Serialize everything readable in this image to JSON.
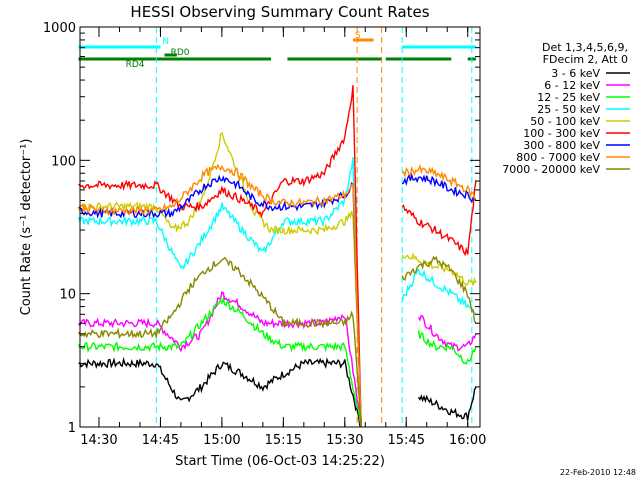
{
  "chart_data": {
    "type": "line",
    "title": "HESSI Observing Summary Count Rates",
    "xlabel": "Start Time (06-Oct-03 14:25:22)",
    "ylabel": "Count Rate (s⁻¹ detector⁻¹)",
    "x_range": [
      "14:25:22",
      "16:03"
    ],
    "ylim": [
      1,
      1000
    ],
    "yscale": "log",
    "x_ticks": [
      "14:30",
      "14:45",
      "15:00",
      "15:15",
      "15:30",
      "15:45",
      "16:00"
    ],
    "y_ticks": [
      "1",
      "10",
      "100",
      "1000"
    ],
    "grid": false,
    "legend": {
      "position": "right",
      "header": [
        "Det 1,3,4,5,6,9,",
        "FDecim 2, Att 0"
      ]
    },
    "series": [
      {
        "name": "3 - 6 keV",
        "color": "#000000",
        "x": [
          "14:25",
          "14:30",
          "14:40",
          "14:44",
          "14:50",
          "14:55",
          "15:00",
          "15:05",
          "15:10",
          "15:15",
          "15:20",
          "15:25",
          "15:30",
          "15:34",
          "15:40",
          "15:44",
          "15:48",
          "15:52",
          "15:56",
          "16:00",
          "16:02"
        ],
        "values": [
          3,
          3,
          3,
          3,
          1.5,
          2,
          3,
          2.5,
          2,
          2.5,
          3,
          3,
          3,
          1,
          null,
          null,
          1.7,
          1.5,
          1.3,
          1.2,
          2
        ]
      },
      {
        "name": "6 - 12 keV",
        "color": "#ff00ff",
        "x": [
          "14:25",
          "14:30",
          "14:40",
          "14:44",
          "14:50",
          "14:55",
          "15:00",
          "15:05",
          "15:10",
          "15:15",
          "15:20",
          "15:25",
          "15:30",
          "15:34",
          "15:40",
          "15:44",
          "15:48",
          "15:52",
          "15:56",
          "16:00",
          "16:02"
        ],
        "values": [
          6,
          6,
          6,
          6,
          4,
          5,
          10,
          8,
          6,
          6,
          6,
          6,
          7,
          1,
          null,
          null,
          7,
          5,
          4,
          4,
          5
        ]
      },
      {
        "name": "12 - 25 keV",
        "color": "#00ff00",
        "x": [
          "14:25",
          "14:30",
          "14:40",
          "14:44",
          "14:50",
          "14:55",
          "15:00",
          "15:05",
          "15:10",
          "15:15",
          "15:20",
          "15:25",
          "15:30",
          "15:34",
          "15:40",
          "15:44",
          "15:48",
          "15:52",
          "15:56",
          "16:00",
          "16:02"
        ],
        "values": [
          4,
          4,
          4,
          4,
          4,
          6,
          9,
          7,
          5,
          4,
          4,
          4,
          4,
          1,
          null,
          null,
          5,
          4,
          4,
          3,
          4
        ]
      },
      {
        "name": "25 - 50 keV",
        "color": "#00ffff",
        "x": [
          "14:25",
          "14:30",
          "14:40",
          "14:44",
          "14:50",
          "14:55",
          "15:00",
          "15:05",
          "15:10",
          "15:15",
          "15:20",
          "15:25",
          "15:30",
          "15:32",
          "15:34",
          "15:40",
          "15:44",
          "15:48",
          "15:52",
          "15:56",
          "16:00",
          "16:02"
        ],
        "values": [
          35,
          35,
          35,
          35,
          15,
          25,
          45,
          30,
          20,
          35,
          35,
          35,
          50,
          100,
          1,
          null,
          9,
          15,
          12,
          10,
          8,
          7
        ]
      },
      {
        "name": "50 - 100 keV",
        "color": "#cccc00",
        "x": [
          "14:25",
          "14:30",
          "14:40",
          "14:44",
          "14:48",
          "14:52",
          "14:56",
          "15:00",
          "15:04",
          "15:08",
          "15:12",
          "15:15",
          "15:20",
          "15:25",
          "15:30",
          "15:32",
          "15:34",
          "15:40",
          "15:44",
          "15:48",
          "15:52",
          "15:56",
          "16:00",
          "16:02"
        ],
        "values": [
          45,
          45,
          45,
          45,
          30,
          35,
          60,
          160,
          80,
          40,
          30,
          30,
          30,
          30,
          35,
          40,
          1,
          null,
          20,
          18,
          16,
          15,
          12,
          12
        ]
      },
      {
        "name": "100 - 300 keV",
        "color": "#ff0000",
        "x": [
          "14:25",
          "14:30",
          "14:40",
          "14:44",
          "14:50",
          "14:55",
          "15:00",
          "15:05",
          "15:10",
          "15:15",
          "15:20",
          "15:25",
          "15:30",
          "15:32",
          "15:34",
          "15:40",
          "15:44",
          "15:48",
          "15:52",
          "15:56",
          "16:00",
          "16:02"
        ],
        "values": [
          65,
          65,
          65,
          65,
          45,
          45,
          60,
          50,
          40,
          70,
          70,
          80,
          150,
          350,
          1,
          null,
          45,
          35,
          30,
          25,
          20,
          70
        ]
      },
      {
        "name": "300 - 800 keV",
        "color": "#0000ff",
        "x": [
          "14:25",
          "14:30",
          "14:40",
          "14:44",
          "14:48",
          "14:52",
          "14:56",
          "15:00",
          "15:04",
          "15:08",
          "15:12",
          "15:15",
          "15:20",
          "15:25",
          "15:30",
          "15:32",
          "15:34",
          "15:40",
          "15:44",
          "15:48",
          "15:52",
          "15:56",
          "16:00",
          "16:02"
        ],
        "values": [
          42,
          40,
          40,
          40,
          40,
          50,
          65,
          75,
          65,
          50,
          45,
          45,
          45,
          48,
          55,
          65,
          1,
          null,
          70,
          75,
          70,
          60,
          55,
          50
        ]
      },
      {
        "name": "800 - 7000 keV",
        "color": "#ff8800",
        "x": [
          "14:25",
          "14:30",
          "14:40",
          "14:44",
          "14:48",
          "14:52",
          "14:56",
          "15:00",
          "15:04",
          "15:08",
          "15:12",
          "15:15",
          "15:20",
          "15:25",
          "15:30",
          "15:32",
          "15:34",
          "15:40",
          "15:44",
          "15:48",
          "15:52",
          "15:56",
          "16:00",
          "16:02"
        ],
        "values": [
          45,
          42,
          42,
          42,
          45,
          60,
          80,
          90,
          80,
          60,
          50,
          48,
          48,
          50,
          55,
          65,
          1,
          null,
          80,
          85,
          80,
          70,
          60,
          52
        ]
      },
      {
        "name": "7000 - 20000 keV",
        "color": "#888800",
        "x": [
          "14:25",
          "14:30",
          "14:40",
          "14:44",
          "14:48",
          "14:52",
          "14:56",
          "15:00",
          "15:04",
          "15:08",
          "15:12",
          "15:15",
          "15:20",
          "15:25",
          "15:30",
          "15:32",
          "15:34",
          "15:40",
          "15:44",
          "15:48",
          "15:52",
          "15:56",
          "16:00",
          "16:02"
        ],
        "values": [
          5,
          5,
          5,
          5,
          7,
          11,
          15,
          18,
          15,
          11,
          8,
          6,
          6,
          6,
          6,
          7,
          1,
          null,
          13,
          16,
          18,
          15,
          10,
          6
        ]
      }
    ],
    "flags": [
      {
        "label": "N",
        "color": "#00ffff",
        "segments": [
          [
            "14:25",
            "14:45"
          ],
          [
            "15:44",
            "16:02"
          ]
        ]
      },
      {
        "label": "RD0",
        "color": "#008000",
        "segments": [
          [
            "14:46",
            "14:49"
          ]
        ]
      },
      {
        "label": "RD4",
        "color": "#008000",
        "segments": [
          [
            "14:25",
            "15:12"
          ],
          [
            "15:16",
            "15:39"
          ],
          [
            "15:40",
            "15:56"
          ],
          [
            "16:00",
            "16:02"
          ]
        ]
      },
      {
        "label": "S",
        "color": "#ff8800",
        "segments": [
          [
            "15:32",
            "15:37"
          ]
        ]
      }
    ],
    "vertical_lines": [
      {
        "color": "#00ffff",
        "x": [
          "14:44",
          "15:44",
          "16:01"
        ]
      },
      {
        "color": "#ff8800",
        "x": [
          "15:33",
          "15:39"
        ]
      }
    ]
  },
  "footer": {
    "date_stamp": "22-Feb-2010 12:48"
  }
}
